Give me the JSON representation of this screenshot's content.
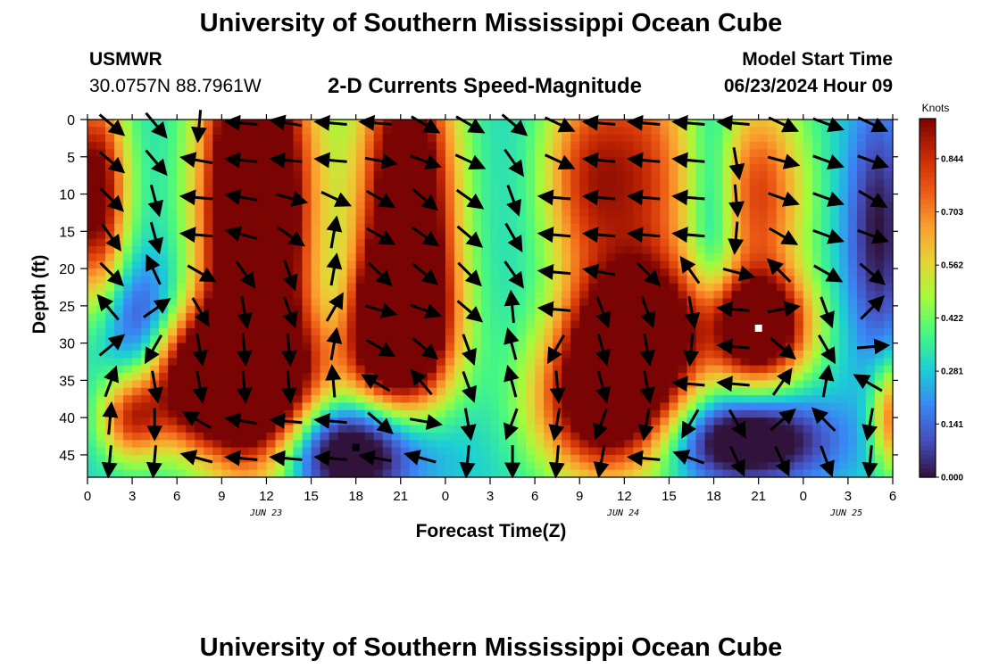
{
  "page": {
    "header_title": "University of Southern Mississippi Ocean Cube",
    "footer_title": "University of Southern Mississippi Ocean Cube",
    "station_id": "USMWR",
    "coordinates": "30.0757N  88.7961W",
    "model_start_label": "Model Start Time",
    "model_start_value": "06/23/2024 Hour 09"
  },
  "chart_data": {
    "type": "heatmap",
    "title": "2-D Currents Speed-Magnitude",
    "xlabel": "Forecast Time(Z)",
    "ylabel": "Depth (ft)",
    "x_tick_labels": [
      "0",
      "3",
      "6",
      "9",
      "12",
      "15",
      "18",
      "21",
      "0",
      "3",
      "6",
      "9",
      "12",
      "15",
      "18",
      "21",
      "0",
      "3",
      "6"
    ],
    "x_range_hours": [
      0,
      54
    ],
    "date_labels": [
      {
        "text": "JUN 23",
        "hour": 12
      },
      {
        "text": "JUN 24",
        "hour": 36
      },
      {
        "text": "JUN 25",
        "hour": 51
      }
    ],
    "y_ticks": [
      0,
      5,
      10,
      15,
      20,
      25,
      30,
      35,
      40,
      45
    ],
    "y_range_ft": [
      0,
      48
    ],
    "colorbar": {
      "title": "Knots",
      "ticks": [
        0.0,
        0.141,
        0.281,
        0.422,
        0.562,
        0.703,
        0.844
      ],
      "range": [
        0,
        0.95
      ]
    },
    "speed_hotspots_knots": [
      {
        "hour": 0.5,
        "depth": 10,
        "speed": 0.75,
        "sigma_hours": 1.5,
        "sigma_ft": 10
      },
      {
        "hour": 11,
        "depth": 15,
        "speed": 0.9,
        "sigma_hours": 2.2,
        "sigma_ft": 22
      },
      {
        "hour": 11,
        "depth": 35,
        "speed": 0.75,
        "sigma_hours": 3.5,
        "sigma_ft": 6
      },
      {
        "hour": 7,
        "depth": 35,
        "speed": 0.55,
        "sigma_hours": 2.0,
        "sigma_ft": 6
      },
      {
        "hour": 21.5,
        "depth": 12,
        "speed": 0.95,
        "sigma_hours": 2.2,
        "sigma_ft": 16
      },
      {
        "hour": 20.5,
        "depth": 28,
        "speed": 0.85,
        "sigma_hours": 2.5,
        "sigma_ft": 7
      },
      {
        "hour": 12,
        "depth": 10,
        "speed": 0.4,
        "sigma_hours": 3.0,
        "sigma_ft": 15
      },
      {
        "hour": 35,
        "depth": 38,
        "speed": 0.9,
        "sigma_hours": 3.3,
        "sigma_ft": 7
      },
      {
        "hour": 37,
        "depth": 28,
        "speed": 0.75,
        "sigma_hours": 3.0,
        "sigma_ft": 6
      },
      {
        "hour": 37,
        "depth": 8,
        "speed": 0.52,
        "sigma_hours": 2.8,
        "sigma_ft": 14
      },
      {
        "hour": 45,
        "depth": 28,
        "speed": 0.92,
        "sigma_hours": 2.3,
        "sigma_ft": 5
      },
      {
        "hour": 45,
        "depth": 10,
        "speed": 0.5,
        "sigma_hours": 2.3,
        "sigma_ft": 10
      },
      {
        "hour": 3,
        "depth": 40,
        "speed": 0.5,
        "sigma_hours": 1.5,
        "sigma_ft": 4
      },
      {
        "hour": 54,
        "depth": 40,
        "speed": 0.45,
        "sigma_hours": 1.0,
        "sigma_ft": 5
      },
      {
        "hour": 33,
        "depth": 8,
        "speed": 0.35,
        "sigma_hours": 2.0,
        "sigma_ft": 10
      }
    ],
    "speed_lows_knots": [
      {
        "hour": 18,
        "depth": 44,
        "speed": -0.5,
        "sigma_hours": 3.5,
        "sigma_ft": 5
      },
      {
        "hour": 44,
        "depth": 43,
        "speed": -0.45,
        "sigma_hours": 4.0,
        "sigma_ft": 4
      },
      {
        "hour": 53,
        "depth": 15,
        "speed": -0.3,
        "sigma_hours": 1.5,
        "sigma_ft": 12
      },
      {
        "hour": 42,
        "depth": 12,
        "speed": -0.25,
        "sigma_hours": 1.2,
        "sigma_ft": 12
      },
      {
        "hour": 3.5,
        "depth": 27,
        "speed": -0.25,
        "sigma_hours": 2.0,
        "sigma_ft": 6
      },
      {
        "hour": 17,
        "depth": 25,
        "speed": -0.15,
        "sigma_hours": 1.2,
        "sigma_ft": 6
      }
    ],
    "vector_grid": {
      "hours": [
        1.5,
        4.5,
        7.5,
        10.5,
        13.5,
        16.5,
        19.5,
        22.5,
        25.5,
        28.5,
        31.5,
        34.5,
        37.5,
        40.5,
        43.5,
        46.5,
        49.5,
        52.5
      ],
      "depths_ft": [
        0.5,
        5.5,
        10.5,
        15.5,
        20.5,
        25.5,
        30.5,
        35.5,
        40.5,
        45.5
      ],
      "directions_deg_from_east_ccw": [
        [
          -40,
          -50,
          -95,
          175,
          170,
          175,
          175,
          -30,
          -30,
          -40,
          -25,
          175,
          175,
          175,
          175,
          -25,
          -20,
          -25
        ],
        [
          -40,
          -50,
          170,
          175,
          175,
          175,
          -10,
          -20,
          -25,
          -55,
          -25,
          175,
          175,
          175,
          -80,
          -15,
          -20,
          -20
        ],
        [
          -45,
          -75,
          175,
          170,
          -15,
          -25,
          -30,
          -40,
          -35,
          -70,
          175,
          175,
          175,
          175,
          -85,
          -20,
          -20,
          -30
        ],
        [
          -55,
          -75,
          175,
          165,
          -35,
          80,
          -30,
          -35,
          -40,
          -60,
          175,
          175,
          175,
          175,
          -95,
          -30,
          -20,
          -20
        ],
        [
          -45,
          115,
          -30,
          -55,
          -70,
          80,
          -45,
          -40,
          -45,
          -55,
          175,
          170,
          -45,
          125,
          -15,
          135,
          -30,
          -40
        ],
        [
          130,
          35,
          -60,
          -80,
          -70,
          60,
          -15,
          -20,
          -40,
          95,
          175,
          -70,
          -70,
          -80,
          175,
          10,
          -70,
          45
        ],
        [
          40,
          -120,
          -80,
          -85,
          -85,
          80,
          -30,
          -40,
          -70,
          105,
          -120,
          -75,
          -80,
          -95,
          175,
          -40,
          -60,
          5
        ],
        [
          70,
          -80,
          -80,
          -85,
          -85,
          95,
          150,
          130,
          -70,
          105,
          -85,
          -75,
          -80,
          175,
          175,
          55,
          80,
          150
        ],
        [
          85,
          -90,
          150,
          170,
          175,
          175,
          -40,
          -10,
          -80,
          -110,
          -100,
          -110,
          -100,
          -120,
          -60,
          40,
          135,
          -100
        ],
        [
          -95,
          -95,
          165,
          175,
          175,
          175,
          170,
          165,
          -95,
          -90,
          -95,
          -100,
          175,
          160,
          -65,
          -65,
          -70,
          -95
        ]
      ]
    },
    "markers": [
      {
        "hour": 18,
        "depth": 44,
        "color": "#000000"
      },
      {
        "hour": 45,
        "depth": 28,
        "color": "#ffffff"
      }
    ]
  }
}
